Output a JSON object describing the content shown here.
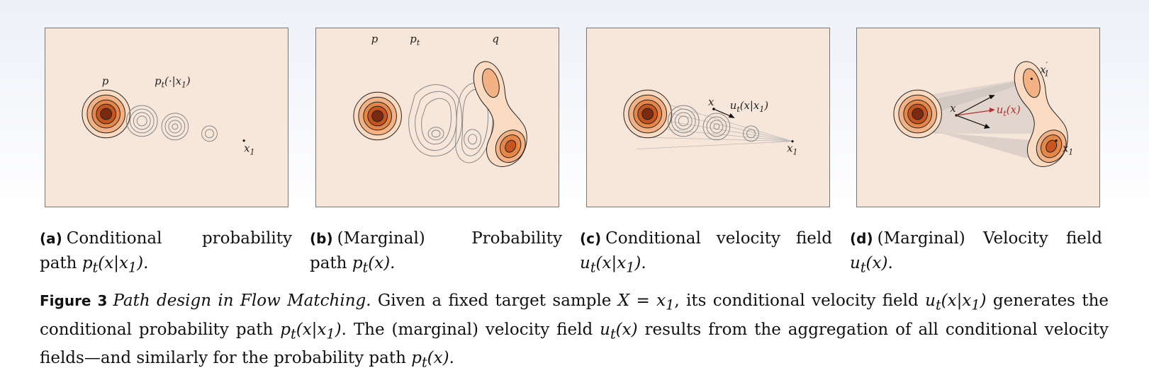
{
  "panels": {
    "a": {
      "label_p": "p",
      "label_pt": "p",
      "label_pt_sub": "t",
      "label_pt_args": "(·|x",
      "label_pt_args_sub": "1",
      "label_pt_close": ")",
      "label_x1": "x",
      "label_x1_sub": "1"
    },
    "b": {
      "label_p": "p",
      "label_pt": "p",
      "label_pt_sub": "t",
      "label_q": "q"
    },
    "c": {
      "label_x": "x",
      "label_u": "u",
      "label_u_sub": "t",
      "label_u_args": "(x|x",
      "label_u_args_sub": "1",
      "label_u_close": ")",
      "label_x1": "x",
      "label_x1_sub": "1"
    },
    "d": {
      "label_x": "x",
      "label_u": "u",
      "label_u_sub": "t",
      "label_u_args": "(x)",
      "label_x1p": "x",
      "label_x1p_sub": "1",
      "label_x1p_prime": "′",
      "label_x1": "x",
      "label_x1_sub": "1",
      "arrow_color": "#b03030"
    }
  },
  "subcaptions": [
    {
      "tag": "(a)",
      "text": "Conditional probability path ",
      "math": "p",
      "math_sub": "t",
      "math_rest": "(x|x",
      "math_rest_sub": "1",
      "math_close": ").",
      "end": ""
    },
    {
      "tag": "(b)",
      "text": "(Marginal) Probability path ",
      "math": "p",
      "math_sub": "t",
      "math_rest": "(x).",
      "math_rest_sub": "",
      "math_close": "",
      "end": ""
    },
    {
      "tag": "(c)",
      "text": "Conditional velocity field ",
      "math": "u",
      "math_sub": "t",
      "math_rest": "(x|x",
      "math_rest_sub": "1",
      "math_close": ").",
      "end": ""
    },
    {
      "tag": "(d)",
      "text": "(Marginal) Velocity field ",
      "math": "u",
      "math_sub": "t",
      "math_rest": "(x).",
      "math_rest_sub": "",
      "math_close": "",
      "end": ""
    }
  ],
  "figure": {
    "label": "Figure 3",
    "title": "Path design in Flow Matching.",
    "body_1": "Given a fixed target sample ",
    "m1": "X = x",
    "m1_sub": "1",
    "body_2": ", its conditional velocity field ",
    "m2": "u",
    "m2_sub": "t",
    "m2_rest": "(x|x",
    "m2_rest_sub": "1",
    "m2_close": ")",
    "body_3": " generates the conditional probability path ",
    "m3": "p",
    "m3_sub": "t",
    "m3_rest": "(x|x",
    "m3_rest_sub": "1",
    "m3_close": ")",
    "body_4": ". The (marginal) velocity field ",
    "m4": "u",
    "m4_sub": "t",
    "m4_rest": "(x)",
    "body_5": " results from the aggregation of all conditional velocity fields—and similarly for the probability path ",
    "m5": "p",
    "m5_sub": "t",
    "m5_rest": "(x)",
    "body_6": "."
  },
  "colors": {
    "panel_bg": "#f7e6da",
    "density_outer": "#f6c9a0",
    "density_mid": "#ef9a5c",
    "density_inner": "#c8551f",
    "density_core": "#7a2a10"
  }
}
